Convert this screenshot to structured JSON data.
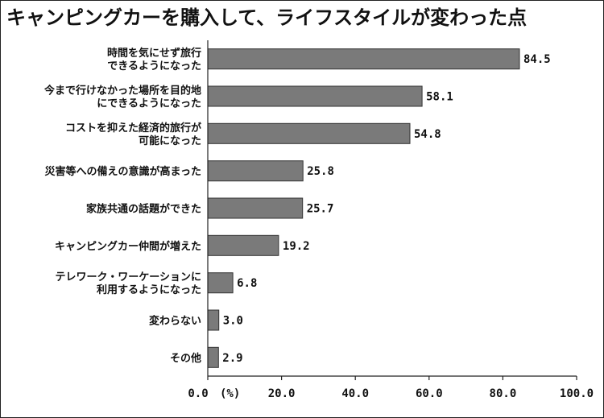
{
  "chart_data": {
    "type": "bar",
    "orientation": "horizontal",
    "title": "キャンピングカーを購入して、ライフスタイルが変わった点",
    "categories": [
      [
        "時間を気にせず旅行",
        "できるようになった"
      ],
      [
        "今まで行けなかった場所を目的地",
        "にできるようになった"
      ],
      [
        "コストを抑えた経済的旅行が",
        "可能になった"
      ],
      [
        "災害等への備えの意識が高まった"
      ],
      [
        "家族共通の話題ができた"
      ],
      [
        "キャンピングカー仲間が増えた"
      ],
      [
        "テレワーク・ワーケーションに",
        "利用するようになった"
      ],
      [
        "変わらない"
      ],
      [
        "その他"
      ]
    ],
    "values": [
      84.5,
      58.1,
      54.8,
      25.8,
      25.7,
      19.2,
      6.8,
      3.0,
      2.9
    ],
    "value_labels": [
      "84.5",
      "58.1",
      "54.8",
      "25.8",
      "25.7",
      "19.2",
      "6.8",
      "3.0",
      "2.9"
    ],
    "xlim": [
      0,
      100
    ],
    "x_ticks": [
      "0.0",
      "20.0",
      "40.0",
      "60.0",
      "80.0",
      "100.0"
    ],
    "x_unit": "(%)",
    "grid": false,
    "colors": {
      "bar": "#7a7a7a",
      "bar_edge": "#333333",
      "axis": "#222222"
    }
  }
}
